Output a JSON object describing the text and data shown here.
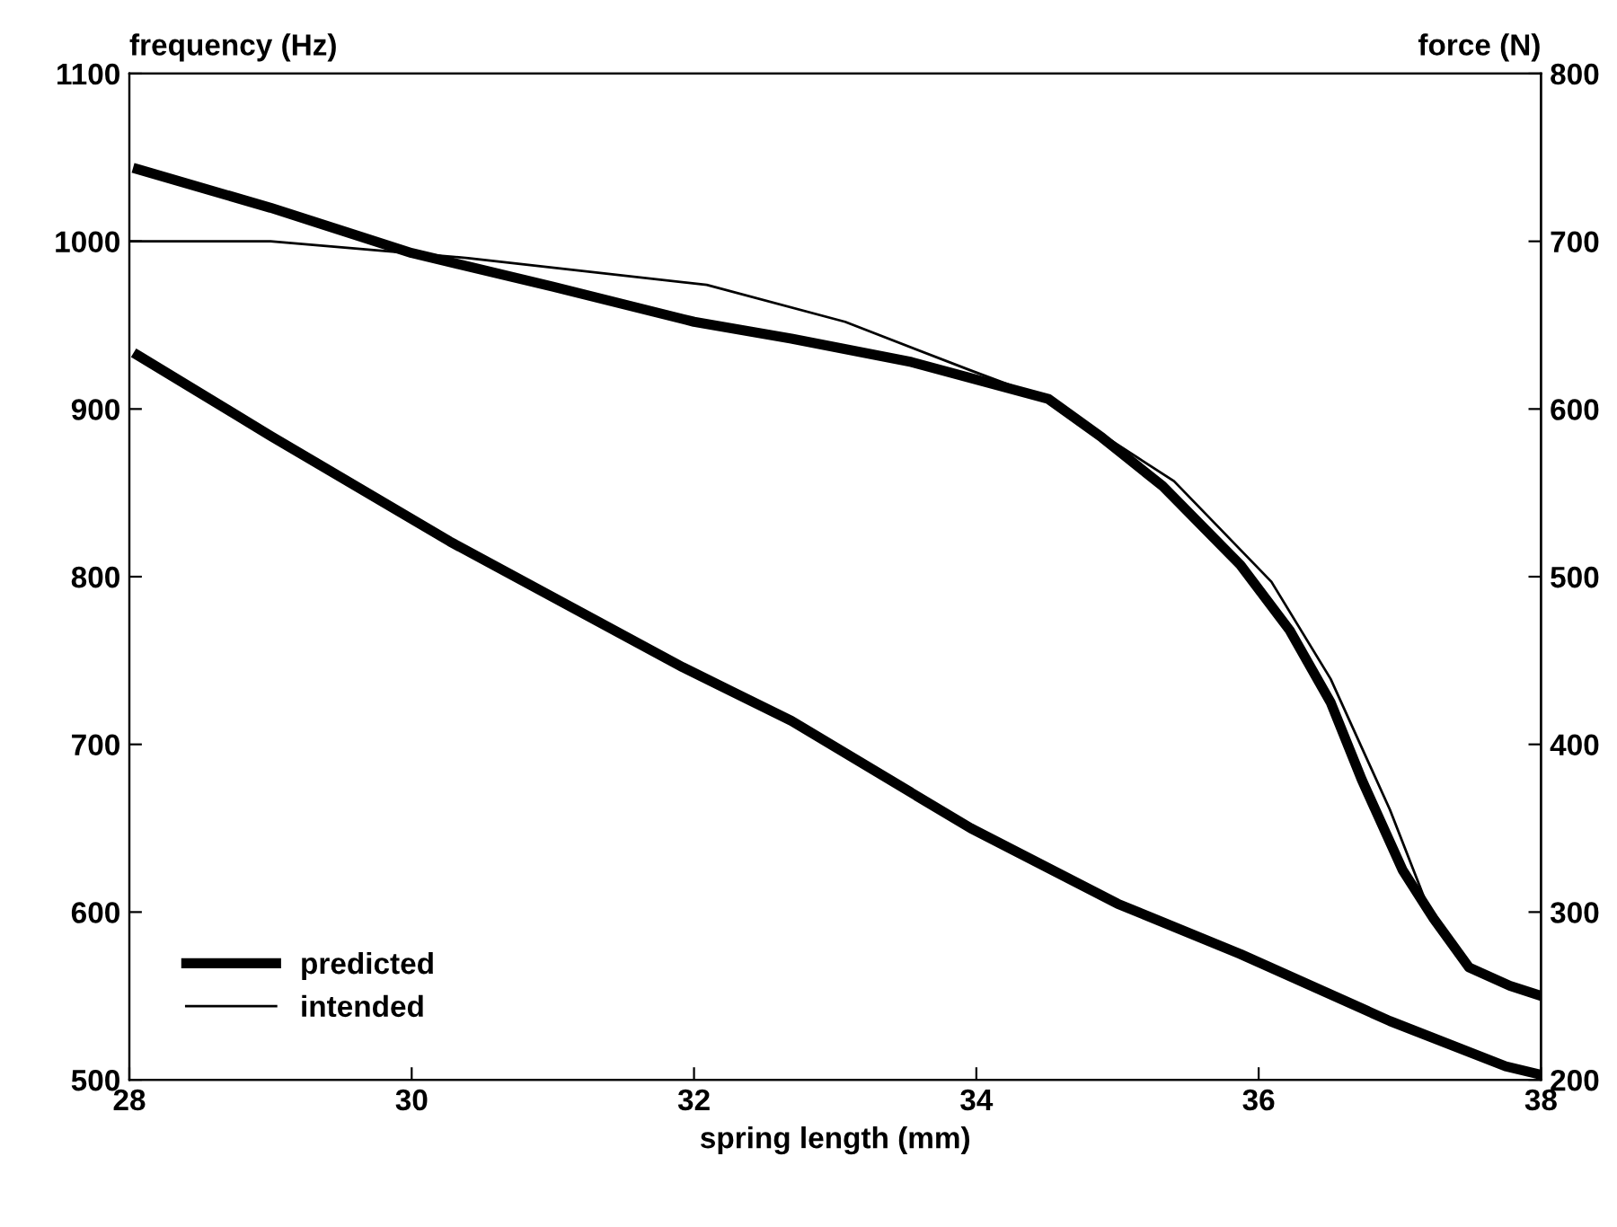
{
  "chart_data": {
    "type": "line",
    "xlabel": "spring length (mm)",
    "ylabel": "frequency (Hz)",
    "y2label": "force (N)",
    "xlim": [
      28,
      38
    ],
    "xticks": [
      28,
      30,
      32,
      34,
      36,
      38
    ],
    "ylim": [
      500,
      1100
    ],
    "yticks": [
      500,
      600,
      700,
      800,
      900,
      1000,
      1100
    ],
    "y2lim": [
      200,
      800
    ],
    "y2ticks": [
      200,
      300,
      400,
      500,
      600,
      700,
      800
    ],
    "legend": "bottom left",
    "grid": false,
    "marker": "none",
    "series": [
      {
        "name": "predicted",
        "color": "#000000",
        "x": [
          28.06,
          29,
          30,
          31,
          32,
          32.69,
          33.54,
          34.51,
          34.89,
          35.32,
          35.87,
          36.22,
          36.51,
          36.73,
          37.02,
          37.24,
          37.49,
          37.78,
          38
        ],
        "values": [
          1043,
          1020,
          993,
          973,
          952,
          942,
          928,
          906,
          883,
          854,
          807,
          768,
          725,
          679,
          625,
          596,
          567,
          556,
          550
        ]
      },
      {
        "name": "intended",
        "color": "#000000",
        "x": [
          28,
          29,
          30.4,
          32.09,
          33.07,
          33.96,
          34.5,
          35.4,
          36.09,
          36.51,
          36.93,
          37.18,
          37.49,
          38
        ],
        "values": [
          1000,
          1000,
          990,
          974,
          952,
          923,
          906,
          857,
          797,
          739,
          661,
          607,
          567,
          548
        ]
      },
      {
        "color": "#000000",
        "axis": "y2",
        "x": [
          28.06,
          29,
          30.27,
          31.92,
          32.69,
          33.96,
          35,
          35.87,
          36.93,
          37.75,
          38
        ],
        "values": [
          632,
          584,
          521,
          446,
          414,
          350,
          305,
          275,
          235,
          208,
          203
        ]
      }
    ]
  }
}
